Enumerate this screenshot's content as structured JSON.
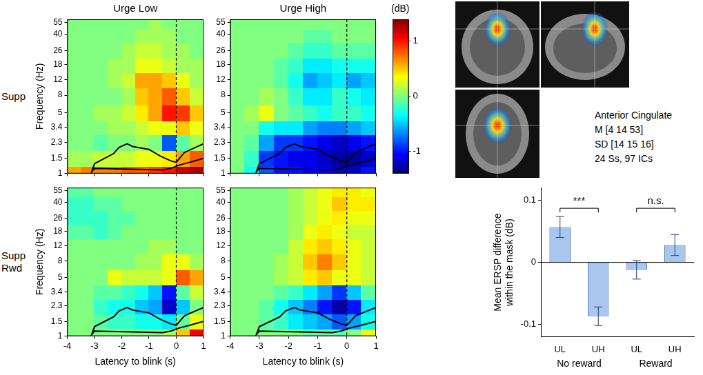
{
  "chart_data": [
    {
      "type": "heatmap",
      "columns": [
        "Urge Low",
        "Urge High"
      ],
      "rows": [
        "Supp",
        "Supp Rwd"
      ],
      "x_label": "Latency to blink (s)",
      "y_label": "Frequency (Hz)",
      "xlim": [
        -4,
        1
      ],
      "xticks": [
        -4,
        -3,
        -2,
        -1,
        0,
        1
      ],
      "ylim": [
        1,
        60
      ],
      "yticks": [
        1,
        1.5,
        2.3,
        3.4,
        5,
        8,
        12,
        18,
        26,
        40,
        55
      ],
      "log": "y",
      "x_bins": [
        -4,
        -3.5,
        -3,
        -2.5,
        -2,
        -1.5,
        -1,
        -0.5,
        0,
        0.5,
        1
      ],
      "y_bins": [
        1,
        1.22,
        1.86,
        2.8,
        4.1,
        6.3,
        9.8,
        14.7,
        21.8,
        32.2,
        47,
        60
      ],
      "event_x": 0,
      "mask_outline": {
        "x": [
          -3.1,
          -3.0,
          -2.3,
          -2.1,
          -1.8,
          -1.6,
          -1.4,
          -1.0,
          -0.6,
          -0.2,
          0,
          0.3,
          0.7,
          1.0,
          1.0,
          0.5,
          0.1,
          -0.2,
          -0.5,
          -3.0,
          -3.1
        ],
        "y": [
          1.05,
          1.3,
          1.7,
          2.0,
          2.2,
          2.05,
          2.0,
          1.9,
          1.6,
          1.4,
          1.35,
          1.75,
          2.0,
          2.2,
          1.5,
          1.35,
          1.25,
          1.15,
          1.1,
          1.15,
          1.05
        ]
      },
      "cells": [
        [
          [
            [
              0.6,
              0.7,
              0.7,
              0.7,
              0.8,
              0.8,
              0.9,
              1.0,
              1.2,
              1.3
            ],
            [
              0.1,
              0.1,
              0.2,
              0.2,
              0.2,
              0.3,
              0.3,
              0.4,
              0.6,
              0.8
            ],
            [
              0,
              0,
              -0.1,
              0,
              0,
              0.1,
              0,
              -0.8,
              -0.1,
              0.1
            ],
            [
              0,
              0,
              0,
              0.1,
              0.1,
              0.2,
              0.3,
              0.3,
              0.5,
              0.3
            ],
            [
              0,
              0,
              0.1,
              0.1,
              0.2,
              0.4,
              0.6,
              1.0,
              0.9,
              0.5
            ],
            [
              0,
              0,
              0,
              0,
              0.1,
              0.5,
              0.6,
              0.8,
              0.5,
              0.2
            ],
            [
              0,
              0,
              0,
              0.1,
              0.2,
              0.6,
              0.6,
              0.5,
              0.3,
              0.1
            ],
            [
              0,
              0,
              0,
              0.1,
              0.1,
              0.3,
              0.3,
              0.2,
              0.1,
              0.1
            ],
            [
              0,
              0,
              0,
              0,
              0.1,
              0.2,
              0.2,
              0.1,
              0.1,
              0
            ],
            [
              0,
              0,
              0,
              0,
              0,
              0.1,
              0.1,
              0.1,
              0,
              0
            ],
            [
              0,
              0,
              0,
              0,
              0,
              0,
              0.1,
              0,
              0,
              0
            ]
          ],
          [
            [
              0,
              -0.3,
              -0.8,
              -1.0,
              -1.0,
              -1.1,
              -1.1,
              -1.2,
              -1.2,
              -1.0
            ],
            [
              0,
              -0.2,
              -0.9,
              -1.0,
              -1.1,
              -1.1,
              -1.2,
              -1.3,
              -1.3,
              -1.2
            ],
            [
              0,
              -0.1,
              -0.6,
              -0.9,
              -0.9,
              -1.0,
              -1.1,
              -1.2,
              -1.1,
              -1.0
            ],
            [
              0,
              0,
              -0.3,
              -0.4,
              -0.4,
              -0.6,
              -0.7,
              -0.7,
              -0.6,
              -0.5
            ],
            [
              0,
              0.1,
              0.3,
              0,
              -0.1,
              -0.2,
              -0.3,
              -0.2,
              -0.2,
              -0.3
            ],
            [
              0,
              0,
              0.1,
              0,
              -0.2,
              -0.4,
              -0.4,
              -0.2,
              -0.3,
              -0.4
            ],
            [
              0,
              0,
              0,
              -0.1,
              -0.3,
              -0.6,
              -0.5,
              -0.4,
              -0.6,
              -0.5
            ],
            [
              0,
              0,
              0,
              -0.1,
              -0.2,
              -0.4,
              -0.4,
              -0.3,
              -0.3,
              -0.3
            ],
            [
              0,
              0,
              0,
              0,
              -0.1,
              -0.2,
              -0.2,
              -0.1,
              -0.1,
              -0.1
            ],
            [
              0,
              0,
              0,
              0,
              0,
              -0.1,
              -0.1,
              0,
              0,
              0
            ],
            [
              0,
              0,
              0,
              0,
              0,
              0,
              0,
              0,
              0,
              0
            ]
          ]
        ],
        [
          [
            [
              0,
              0,
              0,
              0,
              0,
              0,
              0,
              0.1,
              0.5,
              1.1
            ],
            [
              0,
              0,
              -0.1,
              -0.2,
              -0.2,
              -0.3,
              -0.3,
              -0.4,
              -0.1,
              0.3
            ],
            [
              0,
              0,
              -0.2,
              -0.3,
              -0.3,
              -0.5,
              -0.6,
              -1.2,
              -0.5,
              0
            ],
            [
              0,
              0,
              -0.1,
              -0.1,
              -0.2,
              -0.3,
              -0.5,
              -1.0,
              -0.1,
              0.2
            ],
            [
              0,
              0,
              0,
              0.3,
              0.2,
              0.2,
              0.2,
              0.3,
              0.8,
              0.6
            ],
            [
              0,
              0,
              0,
              0,
              0,
              0.1,
              0.1,
              0.3,
              0.3,
              0.1
            ],
            [
              0,
              0,
              0,
              0,
              0,
              0,
              0.1,
              0.1,
              0,
              0
            ],
            [
              -0.1,
              -0.1,
              -0.2,
              -0.1,
              0,
              0,
              0,
              0,
              0,
              0
            ],
            [
              -0.2,
              -0.2,
              -0.2,
              -0.1,
              -0.1,
              0,
              0,
              0,
              0,
              0
            ],
            [
              -0.2,
              -0.2,
              -0.1,
              -0.1,
              0,
              0,
              0,
              0,
              0,
              0
            ],
            [
              -0.1,
              -0.1,
              0,
              0,
              0,
              0,
              0,
              0,
              0,
              0
            ]
          ],
          [
            [
              0,
              0,
              0,
              0,
              0,
              -0.1,
              -0.1,
              -0.1,
              0,
              0.3
            ],
            [
              0,
              0,
              -0.1,
              -0.2,
              -0.4,
              -0.5,
              -0.6,
              -0.8,
              -0.6,
              -0.3
            ],
            [
              0,
              0,
              -0.1,
              -0.3,
              -0.5,
              -0.7,
              -1.0,
              -1.3,
              -1.0,
              -0.4
            ],
            [
              0,
              0,
              0,
              -0.1,
              -0.2,
              -0.4,
              -0.6,
              -0.9,
              -0.5,
              -0.1
            ],
            [
              0,
              0,
              0,
              0.1,
              0.2,
              0.4,
              0.5,
              0.3,
              0.3,
              0.2
            ],
            [
              0,
              0,
              0,
              0.1,
              0.2,
              0.5,
              0.7,
              0.5,
              0.3,
              0.2
            ],
            [
              0,
              0,
              0,
              0,
              0.2,
              0.4,
              0.5,
              0.4,
              0.3,
              0.2
            ],
            [
              0,
              0,
              0,
              0,
              0.1,
              0.3,
              0.4,
              0.3,
              0.2,
              0.2
            ],
            [
              0,
              0,
              0,
              0,
              0.1,
              0.2,
              0.3,
              0.4,
              0.3,
              0.3
            ],
            [
              0,
              0,
              0,
              0,
              0.1,
              0.2,
              0.3,
              0.5,
              0.4,
              0.4
            ],
            [
              0,
              0,
              0,
              0,
              0.1,
              0.2,
              0.3,
              0.4,
              0.4,
              0.3
            ]
          ]
        ]
      ],
      "colorbar": {
        "label": "(dB)",
        "range": [
          -1.4,
          1.4
        ],
        "ticks": [
          -1,
          0,
          1
        ]
      }
    },
    {
      "type": "bar",
      "categories": [
        "UL",
        "UH",
        "UL",
        "UH"
      ],
      "group_labels": [
        "No reward",
        "No reward",
        "Reward",
        "Reward"
      ],
      "values": [
        0.057,
        -0.087,
        -0.012,
        0.028
      ],
      "errors": [
        0.017,
        0.015,
        0.015,
        0.017
      ],
      "color": "#a8c6ee",
      "ylim": [
        -0.12,
        0.12
      ],
      "yticks": [
        -0.1,
        0,
        0.1
      ],
      "y_label": "Mean ERSP difference within the mask (dB)",
      "significance": [
        {
          "text": "***",
          "bars": [
            0,
            1
          ]
        },
        {
          "text": "n.s.",
          "bars": [
            2,
            3
          ]
        }
      ]
    }
  ],
  "dipole_cluster": {
    "lines": [
      "Anterior Cingulate",
      "M [4 14 53]",
      "SD [14 15 16]",
      "24 Ss, 97 ICs"
    ]
  }
}
